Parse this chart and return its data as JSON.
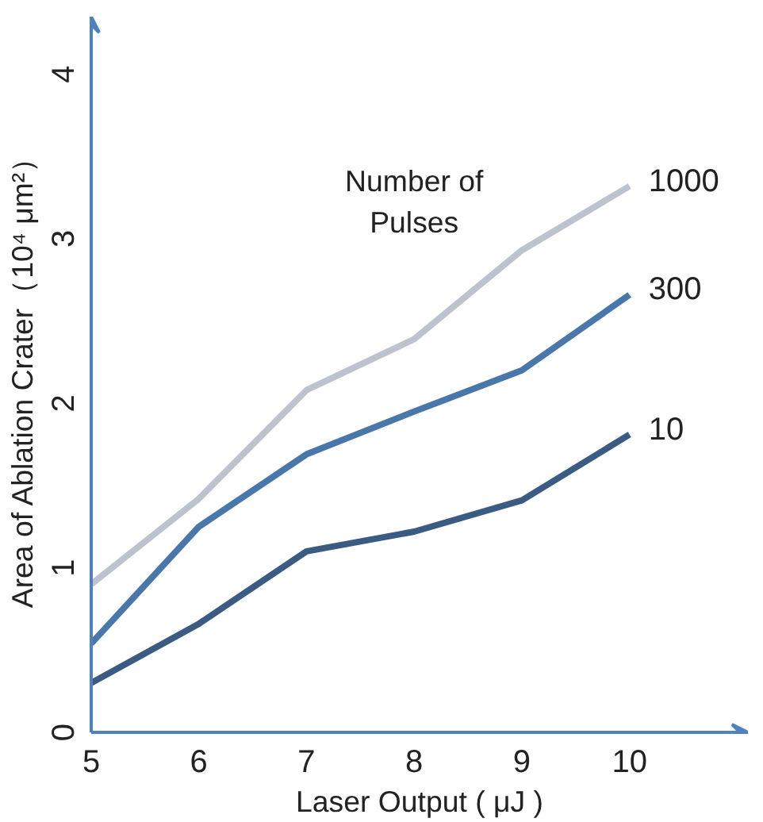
{
  "chart_data": {
    "type": "line",
    "xlabel": "Laser Output ( μJ )",
    "ylabel": "Area of Ablation Crater（10⁴ μm²）",
    "legend_title": "Number of Pulses",
    "x": [
      5,
      6,
      7,
      8,
      9,
      10
    ],
    "series": [
      {
        "name": "1000",
        "color": "#bcc3cf",
        "values": [
          0.9,
          1.42,
          2.08,
          2.39,
          2.93,
          3.32
        ]
      },
      {
        "name": "300",
        "color": "#4a77a9",
        "values": [
          0.54,
          1.25,
          1.69,
          1.95,
          2.2,
          2.66
        ]
      },
      {
        "name": "10",
        "color": "#3b5b82",
        "values": [
          0.3,
          0.66,
          1.1,
          1.22,
          1.41,
          1.81
        ]
      }
    ],
    "xlim": [
      5,
      11.1
    ],
    "ylim": [
      0,
      4.35
    ],
    "xticks": [
      5,
      6,
      7,
      8,
      9,
      10
    ],
    "yticks": [
      0,
      1,
      2,
      3,
      4
    ],
    "grid": false,
    "line_style": "solid",
    "marker": "none"
  }
}
